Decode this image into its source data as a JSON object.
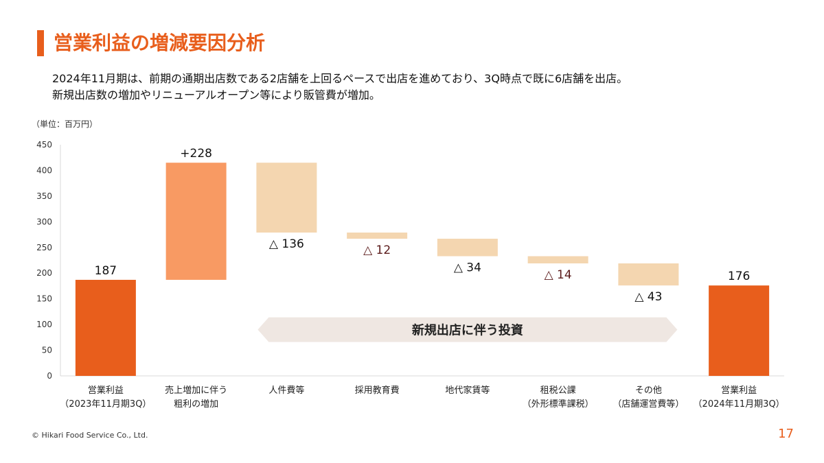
{
  "page": {
    "title": "営業利益の増減要因分析",
    "description_lines": [
      "2024年11月期は、前期の通期出店数である2店舗を上回るペースで出店を進めており、3Q時点で既に6店舗を出店。",
      "新規出店数の増加やリニューアルオープン等により販管費が増加。"
    ],
    "unit": "（単位：百万円）",
    "footer": "© Hikari Food Service Co., Ltd.",
    "page_number": "17"
  },
  "colors": {
    "accent": "#e85e1c",
    "total_bar": "#e85e1c",
    "increase_bar": "#f89a63",
    "decrease_bar": "#f4d6b0",
    "annotation_arrow": "#efe7e2",
    "axis_text": "#333333",
    "decrease_label": "#5a1a1a"
  },
  "chart_data": {
    "type": "waterfall",
    "title": "",
    "ylim": [
      0,
      450
    ],
    "yticks": [
      0,
      50,
      100,
      150,
      200,
      250,
      300,
      350,
      400,
      450
    ],
    "categories": [
      [
        "営業利益",
        "（2023年11月期3Q）"
      ],
      [
        "売上増加に伴う",
        "粗利の増加"
      ],
      [
        "人件費等"
      ],
      [
        "採用教育費"
      ],
      [
        "地代家賃等"
      ],
      [
        "租税公課",
        "（外形標準課税）"
      ],
      [
        "その他",
        "（店舗運営費等）"
      ],
      [
        "営業利益",
        "（2024年11月期3Q）"
      ]
    ],
    "bars": [
      {
        "kind": "total",
        "value": 187,
        "label": "187"
      },
      {
        "kind": "increase",
        "value": 228,
        "label": "+228"
      },
      {
        "kind": "decrease",
        "value": -136,
        "label": "△ 136"
      },
      {
        "kind": "decrease",
        "value": -12,
        "label": "△ 12"
      },
      {
        "kind": "decrease",
        "value": -34,
        "label": "△ 34"
      },
      {
        "kind": "decrease",
        "value": -14,
        "label": "△ 14"
      },
      {
        "kind": "decrease",
        "value": -43,
        "label": "△ 43"
      },
      {
        "kind": "total",
        "value": 176,
        "label": "176"
      }
    ],
    "annotation": {
      "text": "新規出店に伴う投資",
      "from_category": 2,
      "to_category": 6,
      "y_value": 90
    }
  }
}
